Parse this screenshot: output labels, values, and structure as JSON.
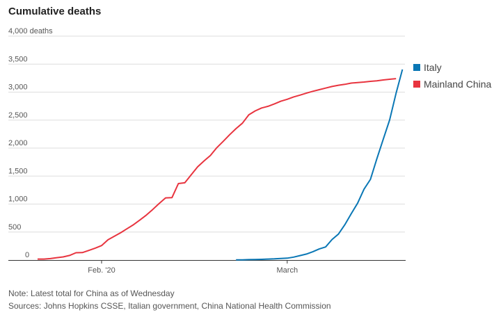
{
  "chart_data": {
    "type": "line",
    "title": "Cumulative deaths",
    "ylabel": "",
    "y_unit_label": "deaths",
    "ylim": [
      0,
      4000
    ],
    "yticks": [
      0,
      500,
      1000,
      1500,
      2000,
      2500,
      3000,
      3500,
      4000
    ],
    "ytick_labels": [
      "0",
      "500",
      "1,000",
      "1,500",
      "2,000",
      "2,500",
      "3,000",
      "3,500",
      "4,000"
    ],
    "xlim": [
      "2020-01-12",
      "2020-03-20"
    ],
    "xticks": [
      "2020-02-01",
      "2020-03-01"
    ],
    "xtick_labels": [
      "Feb. '20",
      "March"
    ],
    "grid": true,
    "legend_position": "right",
    "series": [
      {
        "name": "Italy",
        "color": "#0a77b5",
        "start": "2020-02-22",
        "values": [
          2,
          3,
          7,
          10,
          12,
          17,
          21,
          29,
          34,
          52,
          79,
          107,
          148,
          197,
          233,
          366,
          463,
          631,
          827,
          1016,
          1266,
          1441,
          1809,
          2158,
          2503,
          2978,
          3405
        ]
      },
      {
        "name": "Mainland China",
        "color": "#e8343f",
        "start": "2020-01-22",
        "values": [
          17,
          18,
          26,
          42,
          56,
          82,
          131,
          133,
          171,
          213,
          259,
          361,
          425,
          490,
          562,
          632,
          717,
          804,
          904,
          1011,
          1111,
          1116,
          1367,
          1380,
          1523,
          1665,
          1770,
          1868,
          2007,
          2121,
          2239,
          2348,
          2445,
          2595,
          2665,
          2717,
          2746,
          2790,
          2837,
          2872,
          2914,
          2947,
          2983,
          3015,
          3044,
          3072,
          3100,
          3123,
          3139,
          3161,
          3172,
          3180,
          3193,
          3203,
          3217,
          3230,
          3241
        ]
      }
    ]
  },
  "notes": {
    "note": "Note: Latest total for China as of Wednesday",
    "sources": "Sources: Johns Hopkins CSSE, Italian government, China National Health Commission"
  }
}
